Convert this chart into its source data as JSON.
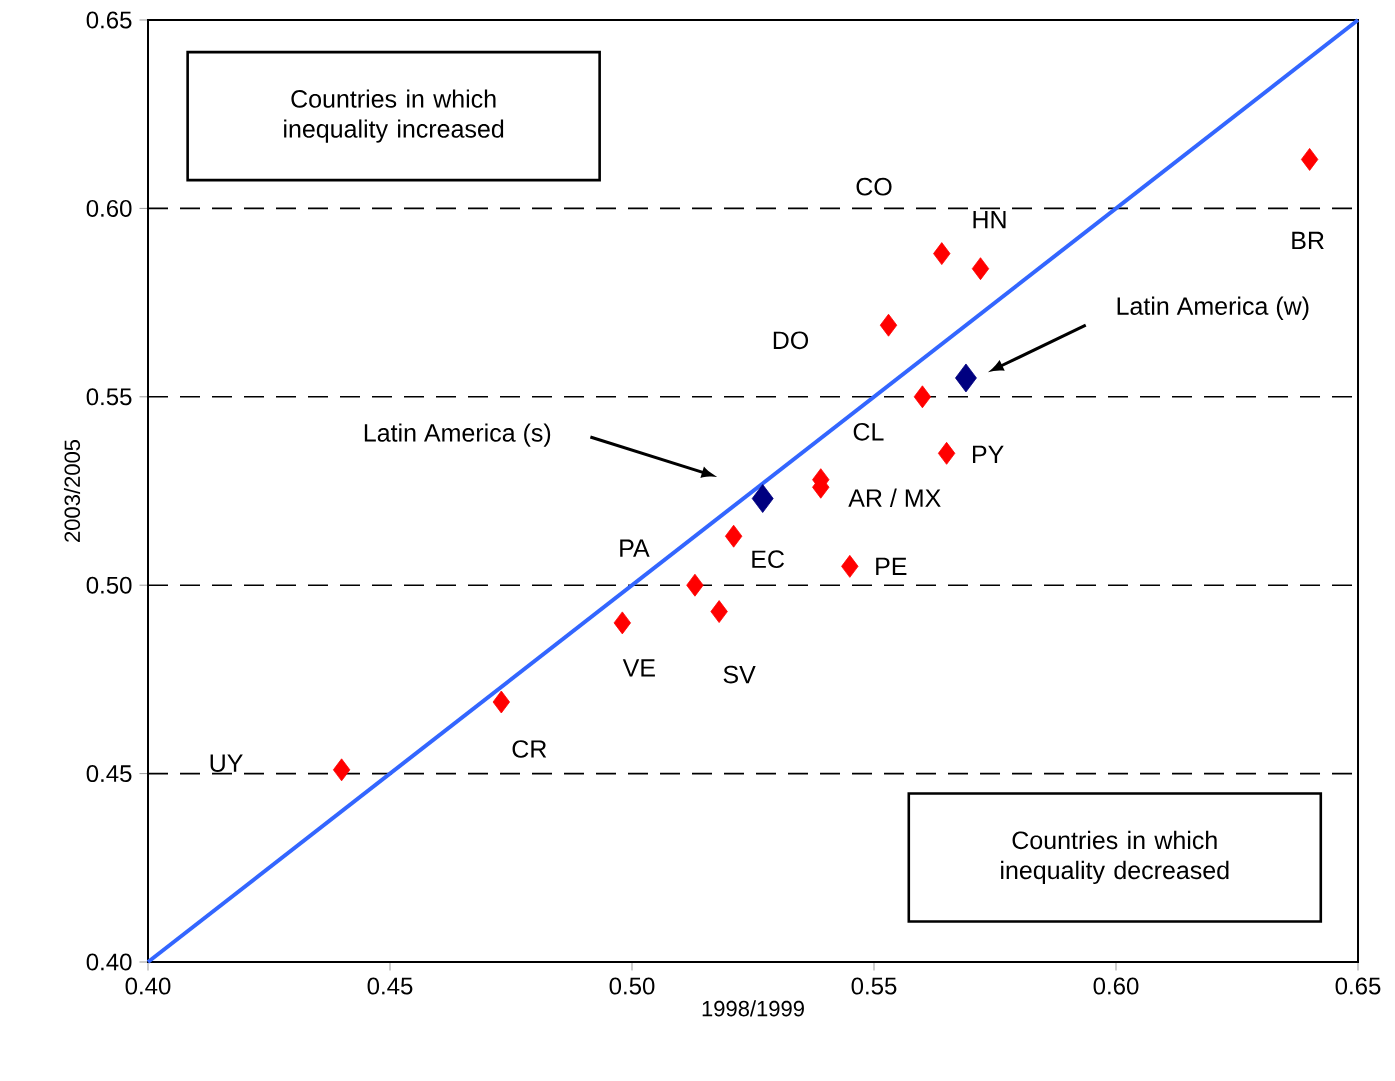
{
  "chart_data": {
    "type": "scatter",
    "xlabel": "1998/1999",
    "ylabel": "2003/2005",
    "marker": "diamond",
    "xlim": [
      0.4,
      0.65
    ],
    "ylim": [
      0.4,
      0.65
    ],
    "xticks": [
      {
        "value": 0.4,
        "label": "0.40"
      },
      {
        "value": 0.45,
        "label": "0.45"
      },
      {
        "value": 0.5,
        "label": "0.50"
      },
      {
        "value": 0.55,
        "label": "0.55"
      },
      {
        "value": 0.6,
        "label": "0.60"
      },
      {
        "value": 0.65,
        "label": "0.65"
      }
    ],
    "yticks": [
      {
        "value": 0.4,
        "label": "0.40"
      },
      {
        "value": 0.45,
        "label": "0.45"
      },
      {
        "value": 0.5,
        "label": "0.50"
      },
      {
        "value": 0.55,
        "label": "0.55"
      },
      {
        "value": 0.6,
        "label": "0.60"
      },
      {
        "value": 0.65,
        "label": "0.65"
      }
    ],
    "series": [
      {
        "color": "#ff0000",
        "x": [
          0.44,
          0.473,
          0.498,
          0.513,
          0.518,
          0.521,
          0.539,
          0.539,
          0.545,
          0.553,
          0.56,
          0.565,
          0.564,
          0.572,
          0.64
        ],
        "values": [
          0.451,
          0.469,
          0.49,
          0.5,
          0.493,
          0.513,
          0.528,
          0.526,
          0.505,
          0.569,
          0.55,
          0.535,
          0.588,
          0.584,
          0.613
        ]
      },
      {
        "color": "#000080",
        "x": [
          0.527,
          0.569
        ],
        "values": [
          0.523,
          0.555
        ]
      },
      {
        "type": "line",
        "marker": "none",
        "color": "#3366ff",
        "x": [
          0.4,
          0.65
        ],
        "values": [
          0.4,
          0.65
        ]
      }
    ],
    "ref_lines": [
      {
        "axis": "y",
        "value": 0.45,
        "color": "#000000",
        "line_style": "dashed"
      },
      {
        "axis": "y",
        "value": 0.5,
        "color": "#000000",
        "line_style": "dashed"
      },
      {
        "axis": "y",
        "value": 0.55,
        "color": "#000000",
        "line_style": "dashed"
      },
      {
        "axis": "y",
        "value": 0.6,
        "color": "#000000",
        "line_style": "dashed"
      }
    ],
    "annotations": [
      "Countries in which inequality increased",
      "Countries in which inequality decreased",
      "UY",
      "DO",
      "CO",
      "Latin America (s)",
      "Latin America (w)",
      {
        "text": "CR",
        "x": 0.473,
        "y": 0.469
      },
      {
        "text": "VE",
        "x": 0.498,
        "y": 0.49
      },
      {
        "text": "SV",
        "x": 0.518,
        "y": 0.493
      },
      {
        "text": "EC",
        "x": 0.521,
        "y": 0.513
      },
      {
        "text": "PA",
        "x": 0.513,
        "y": 0.5
      },
      {
        "text": "AR / MX",
        "x": 0.539,
        "y": 0.528
      },
      {
        "text": "PE",
        "x": 0.545,
        "y": 0.505
      },
      {
        "text": "CL",
        "x": 0.56,
        "y": 0.55
      },
      {
        "text": "PY",
        "x": 0.565,
        "y": 0.535
      },
      {
        "text": "HN",
        "x": 0.572,
        "y": 0.584
      },
      {
        "text": "BR",
        "x": 0.64,
        "y": 0.613
      }
    ]
  }
}
